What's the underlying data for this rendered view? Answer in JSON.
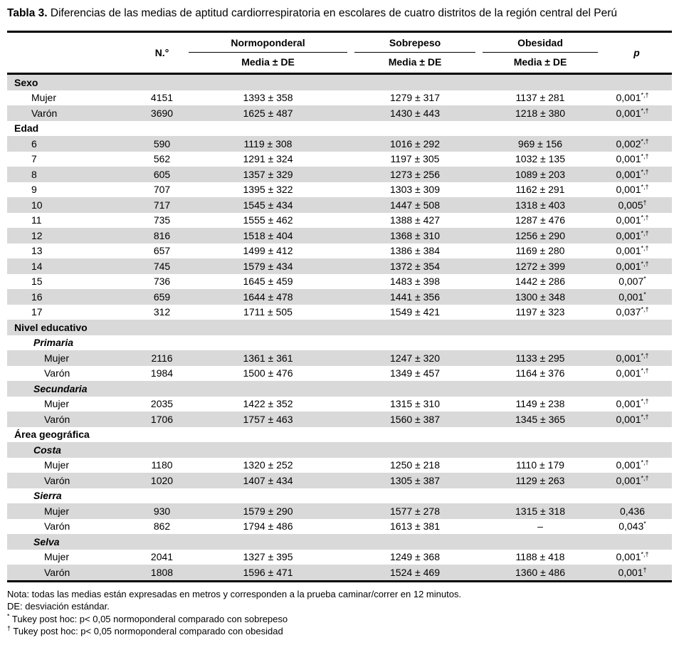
{
  "title": {
    "label": "Tabla 3.",
    "text": "Diferencias de las medias de aptitud cardiorrespiratoria en escolares de cuatro distritos de la región central del Perú"
  },
  "table": {
    "header": {
      "n": "N.°",
      "p": "p",
      "groups": [
        {
          "label": "Normoponderal",
          "sub": "Media ± DE"
        },
        {
          "label": "Sobrepeso",
          "sub": "Media ± DE"
        },
        {
          "label": "Obesidad",
          "sub": "Media ± DE"
        }
      ]
    },
    "rows": [
      {
        "t": "sec",
        "label": "Sexo"
      },
      {
        "t": "d",
        "ind": 1,
        "label": "Mujer",
        "n": "4151",
        "c1": "1393 ± 358",
        "c2": "1279 ± 317",
        "c3": "1137 ± 281",
        "p": "0,001",
        "sup": "*,†"
      },
      {
        "t": "d",
        "ind": 1,
        "label": "Varón",
        "n": "3690",
        "c1": "1625 ± 487",
        "c2": "1430 ± 443",
        "c3": "1218 ± 380",
        "p": "0,001",
        "sup": "*,†"
      },
      {
        "t": "sec",
        "label": "Edad"
      },
      {
        "t": "d",
        "ind": 1,
        "label": "6",
        "n": "590",
        "c1": "1119 ± 308",
        "c2": "1016 ± 292",
        "c3": "969 ± 156",
        "p": "0,002",
        "sup": "*,†"
      },
      {
        "t": "d",
        "ind": 1,
        "label": "7",
        "n": "562",
        "c1": "1291 ± 324",
        "c2": "1197 ± 305",
        "c3": "1032 ± 135",
        "p": "0,001",
        "sup": "*,†"
      },
      {
        "t": "d",
        "ind": 1,
        "label": "8",
        "n": "605",
        "c1": "1357 ± 329",
        "c2": "1273 ± 256",
        "c3": "1089 ± 203",
        "p": "0,001",
        "sup": "*,†"
      },
      {
        "t": "d",
        "ind": 1,
        "label": "9",
        "n": "707",
        "c1": "1395 ± 322",
        "c2": "1303 ± 309",
        "c3": "1162 ± 291",
        "p": "0,001",
        "sup": "*,†"
      },
      {
        "t": "d",
        "ind": 1,
        "label": "10",
        "n": "717",
        "c1": "1545 ± 434",
        "c2": "1447 ± 508",
        "c3": "1318 ± 403",
        "p": "0,005",
        "sup": "†"
      },
      {
        "t": "d",
        "ind": 1,
        "label": "11",
        "n": "735",
        "c1": "1555 ± 462",
        "c2": "1388 ± 427",
        "c3": "1287 ± 476",
        "p": "0,001",
        "sup": "*,†"
      },
      {
        "t": "d",
        "ind": 1,
        "label": "12",
        "n": "816",
        "c1": "1518 ± 404",
        "c2": "1368 ± 310",
        "c3": "1256 ± 290",
        "p": "0,001",
        "sup": "*,†"
      },
      {
        "t": "d",
        "ind": 1,
        "label": "13",
        "n": "657",
        "c1": "1499 ± 412",
        "c2": "1386 ± 384",
        "c3": "1169 ± 280",
        "p": "0,001",
        "sup": "*,†"
      },
      {
        "t": "d",
        "ind": 1,
        "label": "14",
        "n": "745",
        "c1": "1579 ± 434",
        "c2": "1372 ± 354",
        "c3": "1272 ± 399",
        "p": "0,001",
        "sup": "*,†"
      },
      {
        "t": "d",
        "ind": 1,
        "label": "15",
        "n": "736",
        "c1": "1645 ± 459",
        "c2": "1483 ± 398",
        "c3": "1442 ± 286",
        "p": "0,007",
        "sup": "*"
      },
      {
        "t": "d",
        "ind": 1,
        "label": "16",
        "n": "659",
        "c1": "1644 ± 478",
        "c2": "1441 ± 356",
        "c3": "1300 ± 348",
        "p": "0,001",
        "sup": "*"
      },
      {
        "t": "d",
        "ind": 1,
        "label": "17",
        "n": "312",
        "c1": "1711 ± 505",
        "c2": "1549 ± 421",
        "c3": "1197 ± 323",
        "p": "0,037",
        "sup": "*,†"
      },
      {
        "t": "sec",
        "label": "Nivel educativo"
      },
      {
        "t": "sub",
        "label": "Primaria"
      },
      {
        "t": "d",
        "ind": 2,
        "label": "Mujer",
        "n": "2116",
        "c1": "1361 ± 361",
        "c2": "1247 ± 320",
        "c3": "1133 ± 295",
        "p": "0,001",
        "sup": "*,†"
      },
      {
        "t": "d",
        "ind": 2,
        "label": "Varón",
        "n": "1984",
        "c1": "1500 ± 476",
        "c2": "1349 ± 457",
        "c3": "1164 ± 376",
        "p": "0,001",
        "sup": "*,†"
      },
      {
        "t": "sub",
        "label": "Secundaria"
      },
      {
        "t": "d",
        "ind": 2,
        "label": "Mujer",
        "n": "2035",
        "c1": "1422 ± 352",
        "c2": "1315 ± 310",
        "c3": "1149 ± 238",
        "p": "0,001",
        "sup": "*,†"
      },
      {
        "t": "d",
        "ind": 2,
        "label": "Varón",
        "n": "1706",
        "c1": "1757 ± 463",
        "c2": "1560 ± 387",
        "c3": "1345 ± 365",
        "p": "0,001",
        "sup": "*,†"
      },
      {
        "t": "sec",
        "label": "Área geográfica"
      },
      {
        "t": "sub",
        "label": "Costa"
      },
      {
        "t": "d",
        "ind": 2,
        "label": "Mujer",
        "n": "1180",
        "c1": "1320 ± 252",
        "c2": "1250 ± 218",
        "c3": "1110 ± 179",
        "p": "0,001",
        "sup": "*,†"
      },
      {
        "t": "d",
        "ind": 2,
        "label": "Varón",
        "n": "1020",
        "c1": "1407 ± 434",
        "c2": "1305 ± 387",
        "c3": "1129 ± 263",
        "p": "0,001",
        "sup": "*,†"
      },
      {
        "t": "sub",
        "label": "Sierra"
      },
      {
        "t": "d",
        "ind": 2,
        "label": "Mujer",
        "n": "930",
        "c1": "1579 ± 290",
        "c2": "1577 ± 278",
        "c3": "1315 ± 318",
        "p": "0,436",
        "sup": ""
      },
      {
        "t": "d",
        "ind": 2,
        "label": "Varón",
        "n": "862",
        "c1": "1794 ± 486",
        "c2": "1613 ± 381",
        "c3": "–",
        "p": "0,043",
        "sup": "*"
      },
      {
        "t": "sub",
        "label": "Selva"
      },
      {
        "t": "d",
        "ind": 2,
        "label": "Mujer",
        "n": "2041",
        "c1": "1327 ± 395",
        "c2": "1249 ± 368",
        "c3": "1188 ± 418",
        "p": "0,001",
        "sup": "*,†"
      },
      {
        "t": "d",
        "ind": 2,
        "label": "Varón",
        "n": "1808",
        "c1": "1596 ± 471",
        "c2": "1524 ± 469",
        "c3": "1360 ± 486",
        "p": "0,001",
        "sup": "†"
      }
    ]
  },
  "footer": {
    "lines": [
      {
        "sup": "",
        "text": "Nota: todas las medias están expresadas en metros y corresponden a la prueba caminar/correr en 12 minutos."
      },
      {
        "sup": "",
        "text": "DE: desviación estándar."
      },
      {
        "sup": "*",
        "text": " Tukey post hoc: p< 0,05 normoponderal comparado con sobrepeso"
      },
      {
        "sup": "†",
        "text": " Tukey post hoc: p< 0,05 normoponderal comparado con obesidad"
      }
    ]
  },
  "colors": {
    "stripe": "#d9d9d9",
    "border": "#000000",
    "text": "#000000"
  }
}
